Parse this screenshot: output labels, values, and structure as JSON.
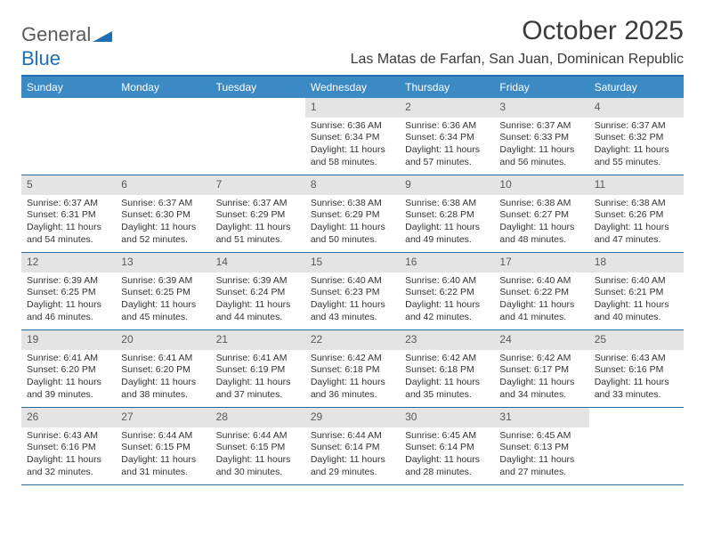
{
  "brand": {
    "part1": "General",
    "part2": "Blue"
  },
  "title": "October 2025",
  "location": "Las Matas de Farfan, San Juan, Dominican Republic",
  "colors": {
    "header_bg": "#3b8ac4",
    "border": "#1f6fb2",
    "daynum_bg": "#e4e4e4",
    "text": "#333333"
  },
  "dow": [
    "Sunday",
    "Monday",
    "Tuesday",
    "Wednesday",
    "Thursday",
    "Friday",
    "Saturday"
  ],
  "weeks": [
    [
      {
        "n": "",
        "sr": "",
        "ss": "",
        "dl": ""
      },
      {
        "n": "",
        "sr": "",
        "ss": "",
        "dl": ""
      },
      {
        "n": "",
        "sr": "",
        "ss": "",
        "dl": ""
      },
      {
        "n": "1",
        "sr": "Sunrise: 6:36 AM",
        "ss": "Sunset: 6:34 PM",
        "dl": "Daylight: 11 hours and 58 minutes."
      },
      {
        "n": "2",
        "sr": "Sunrise: 6:36 AM",
        "ss": "Sunset: 6:34 PM",
        "dl": "Daylight: 11 hours and 57 minutes."
      },
      {
        "n": "3",
        "sr": "Sunrise: 6:37 AM",
        "ss": "Sunset: 6:33 PM",
        "dl": "Daylight: 11 hours and 56 minutes."
      },
      {
        "n": "4",
        "sr": "Sunrise: 6:37 AM",
        "ss": "Sunset: 6:32 PM",
        "dl": "Daylight: 11 hours and 55 minutes."
      }
    ],
    [
      {
        "n": "5",
        "sr": "Sunrise: 6:37 AM",
        "ss": "Sunset: 6:31 PM",
        "dl": "Daylight: 11 hours and 54 minutes."
      },
      {
        "n": "6",
        "sr": "Sunrise: 6:37 AM",
        "ss": "Sunset: 6:30 PM",
        "dl": "Daylight: 11 hours and 52 minutes."
      },
      {
        "n": "7",
        "sr": "Sunrise: 6:37 AM",
        "ss": "Sunset: 6:29 PM",
        "dl": "Daylight: 11 hours and 51 minutes."
      },
      {
        "n": "8",
        "sr": "Sunrise: 6:38 AM",
        "ss": "Sunset: 6:29 PM",
        "dl": "Daylight: 11 hours and 50 minutes."
      },
      {
        "n": "9",
        "sr": "Sunrise: 6:38 AM",
        "ss": "Sunset: 6:28 PM",
        "dl": "Daylight: 11 hours and 49 minutes."
      },
      {
        "n": "10",
        "sr": "Sunrise: 6:38 AM",
        "ss": "Sunset: 6:27 PM",
        "dl": "Daylight: 11 hours and 48 minutes."
      },
      {
        "n": "11",
        "sr": "Sunrise: 6:38 AM",
        "ss": "Sunset: 6:26 PM",
        "dl": "Daylight: 11 hours and 47 minutes."
      }
    ],
    [
      {
        "n": "12",
        "sr": "Sunrise: 6:39 AM",
        "ss": "Sunset: 6:25 PM",
        "dl": "Daylight: 11 hours and 46 minutes."
      },
      {
        "n": "13",
        "sr": "Sunrise: 6:39 AM",
        "ss": "Sunset: 6:25 PM",
        "dl": "Daylight: 11 hours and 45 minutes."
      },
      {
        "n": "14",
        "sr": "Sunrise: 6:39 AM",
        "ss": "Sunset: 6:24 PM",
        "dl": "Daylight: 11 hours and 44 minutes."
      },
      {
        "n": "15",
        "sr": "Sunrise: 6:40 AM",
        "ss": "Sunset: 6:23 PM",
        "dl": "Daylight: 11 hours and 43 minutes."
      },
      {
        "n": "16",
        "sr": "Sunrise: 6:40 AM",
        "ss": "Sunset: 6:22 PM",
        "dl": "Daylight: 11 hours and 42 minutes."
      },
      {
        "n": "17",
        "sr": "Sunrise: 6:40 AM",
        "ss": "Sunset: 6:22 PM",
        "dl": "Daylight: 11 hours and 41 minutes."
      },
      {
        "n": "18",
        "sr": "Sunrise: 6:40 AM",
        "ss": "Sunset: 6:21 PM",
        "dl": "Daylight: 11 hours and 40 minutes."
      }
    ],
    [
      {
        "n": "19",
        "sr": "Sunrise: 6:41 AM",
        "ss": "Sunset: 6:20 PM",
        "dl": "Daylight: 11 hours and 39 minutes."
      },
      {
        "n": "20",
        "sr": "Sunrise: 6:41 AM",
        "ss": "Sunset: 6:20 PM",
        "dl": "Daylight: 11 hours and 38 minutes."
      },
      {
        "n": "21",
        "sr": "Sunrise: 6:41 AM",
        "ss": "Sunset: 6:19 PM",
        "dl": "Daylight: 11 hours and 37 minutes."
      },
      {
        "n": "22",
        "sr": "Sunrise: 6:42 AM",
        "ss": "Sunset: 6:18 PM",
        "dl": "Daylight: 11 hours and 36 minutes."
      },
      {
        "n": "23",
        "sr": "Sunrise: 6:42 AM",
        "ss": "Sunset: 6:18 PM",
        "dl": "Daylight: 11 hours and 35 minutes."
      },
      {
        "n": "24",
        "sr": "Sunrise: 6:42 AM",
        "ss": "Sunset: 6:17 PM",
        "dl": "Daylight: 11 hours and 34 minutes."
      },
      {
        "n": "25",
        "sr": "Sunrise: 6:43 AM",
        "ss": "Sunset: 6:16 PM",
        "dl": "Daylight: 11 hours and 33 minutes."
      }
    ],
    [
      {
        "n": "26",
        "sr": "Sunrise: 6:43 AM",
        "ss": "Sunset: 6:16 PM",
        "dl": "Daylight: 11 hours and 32 minutes."
      },
      {
        "n": "27",
        "sr": "Sunrise: 6:44 AM",
        "ss": "Sunset: 6:15 PM",
        "dl": "Daylight: 11 hours and 31 minutes."
      },
      {
        "n": "28",
        "sr": "Sunrise: 6:44 AM",
        "ss": "Sunset: 6:15 PM",
        "dl": "Daylight: 11 hours and 30 minutes."
      },
      {
        "n": "29",
        "sr": "Sunrise: 6:44 AM",
        "ss": "Sunset: 6:14 PM",
        "dl": "Daylight: 11 hours and 29 minutes."
      },
      {
        "n": "30",
        "sr": "Sunrise: 6:45 AM",
        "ss": "Sunset: 6:14 PM",
        "dl": "Daylight: 11 hours and 28 minutes."
      },
      {
        "n": "31",
        "sr": "Sunrise: 6:45 AM",
        "ss": "Sunset: 6:13 PM",
        "dl": "Daylight: 11 hours and 27 minutes."
      },
      {
        "n": "",
        "sr": "",
        "ss": "",
        "dl": ""
      }
    ]
  ]
}
